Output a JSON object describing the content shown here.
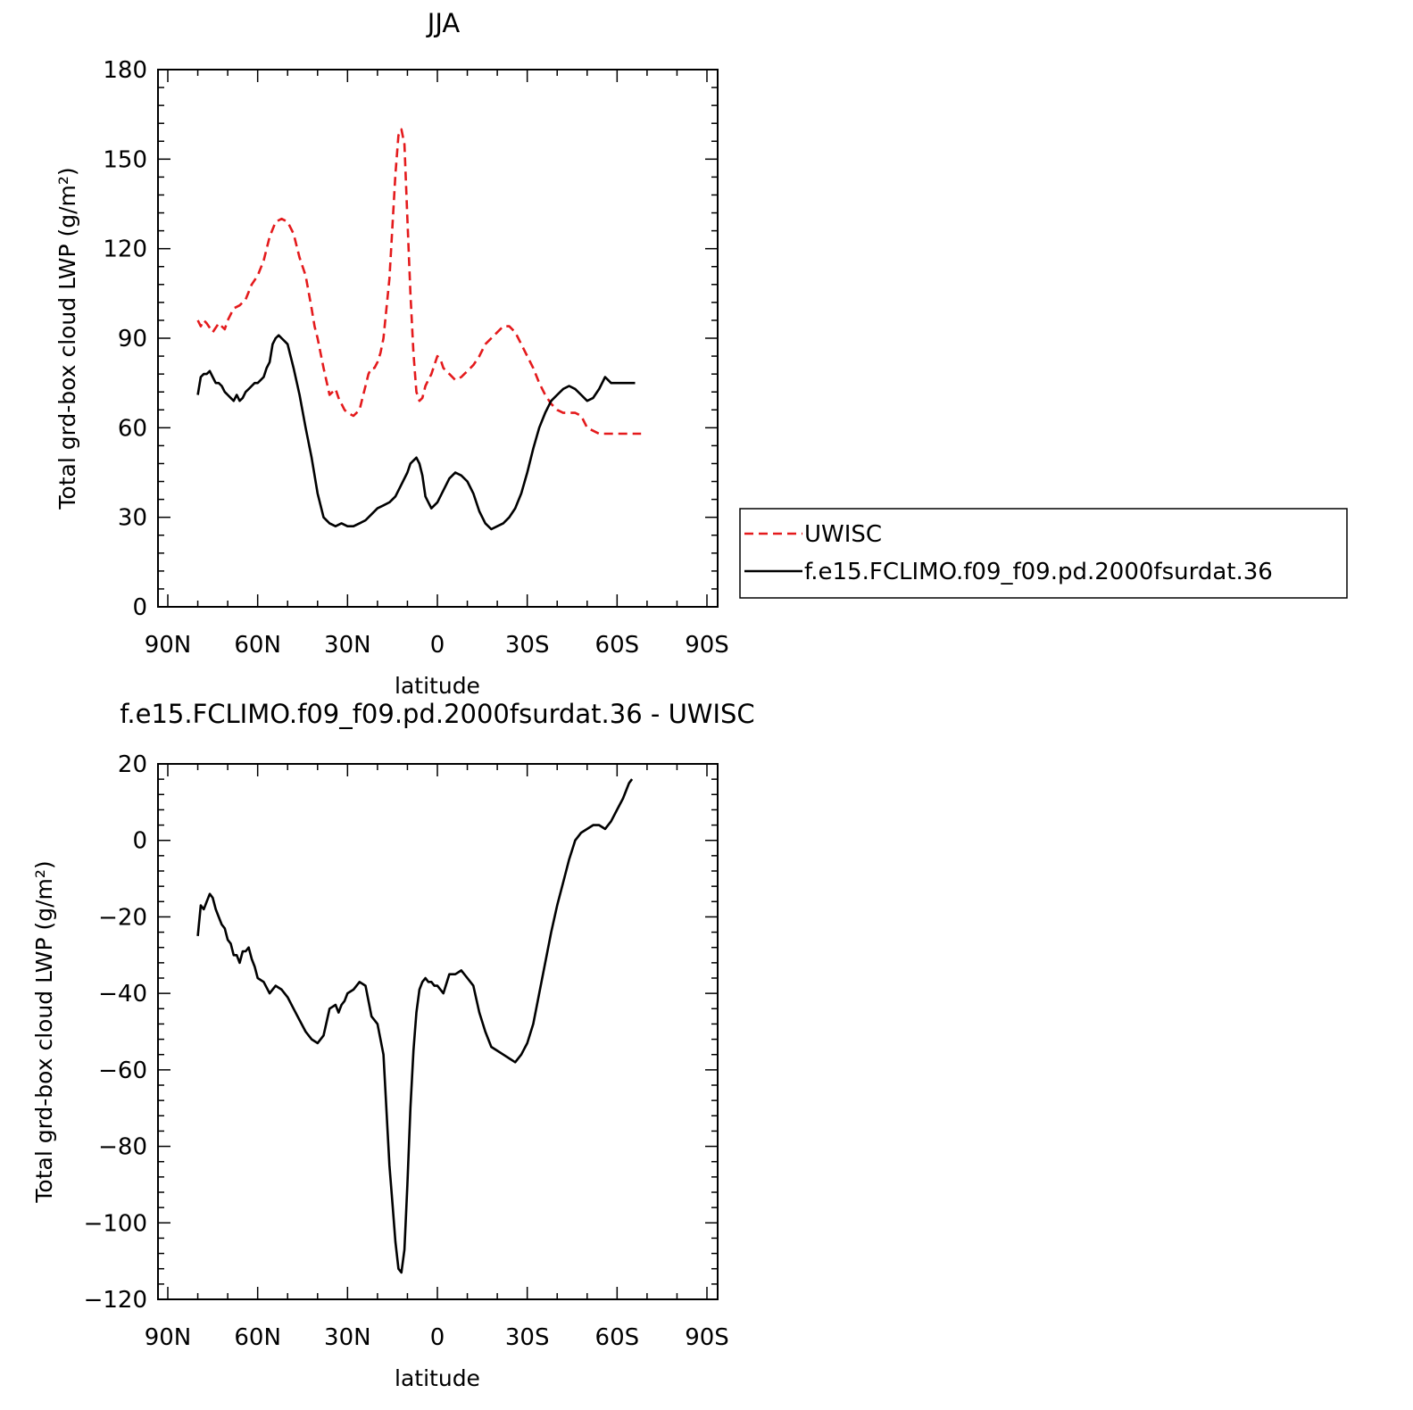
{
  "chart_data": [
    {
      "type": "line",
      "title": "JJA",
      "xlabel": "latitude",
      "ylabel": "Total grd-box cloud LWP (g/m²)",
      "xlim": [
        90,
        -90
      ],
      "ylim": [
        0,
        180
      ],
      "x_ticks": [
        90,
        60,
        30,
        0,
        -30,
        -60,
        -90
      ],
      "x_tick_labels": [
        "90N",
        "60N",
        "30N",
        "0",
        "30S",
        "60S",
        "90S"
      ],
      "y_ticks": [
        0,
        30,
        60,
        90,
        120,
        150,
        180
      ],
      "y_tick_labels": [
        "0",
        "30",
        "60",
        "90",
        "120",
        "150",
        "180"
      ],
      "legend_position": "right, outside plot",
      "series": [
        {
          "name": "UWISC",
          "color": "#e41a1c",
          "style": "dashed",
          "x": [
            80,
            79,
            78,
            77,
            75,
            73,
            71,
            70,
            68,
            66,
            64,
            62,
            60,
            58,
            56,
            54,
            52,
            50,
            48,
            46,
            44,
            42,
            41,
            40,
            38,
            36,
            34,
            33,
            32,
            31,
            30,
            28,
            26,
            25,
            24,
            23,
            22,
            21,
            20,
            19,
            18,
            16,
            14,
            13,
            12,
            11,
            10,
            9,
            8,
            7,
            6,
            5,
            4,
            3,
            2,
            1,
            0,
            -1,
            -2,
            -4,
            -6,
            -8,
            -9,
            -10,
            -12,
            -14,
            -16,
            -18,
            -20,
            -22,
            -24,
            -26,
            -28,
            -30,
            -32,
            -34,
            -36,
            -38,
            -40,
            -42,
            -44,
            -46,
            -48,
            -50,
            -52,
            -54,
            -56,
            -58,
            -60,
            -62,
            -64,
            -65,
            -66,
            -67,
            -68
          ],
          "y": [
            96,
            94,
            96,
            95,
            92,
            95,
            93,
            96,
            100,
            101,
            103,
            108,
            111,
            116,
            124,
            129,
            130,
            129,
            125,
            117,
            111,
            100,
            94,
            90,
            80,
            71,
            73,
            70,
            68,
            66,
            65,
            64,
            66,
            70,
            74,
            78,
            80,
            80,
            82,
            85,
            90,
            110,
            145,
            158,
            160,
            155,
            130,
            105,
            85,
            72,
            69,
            70,
            74,
            76,
            78,
            81,
            84,
            83,
            80,
            78,
            76,
            77,
            78,
            79,
            81,
            84,
            88,
            90,
            92,
            94,
            94,
            92,
            88,
            84,
            80,
            75,
            71,
            68,
            66,
            65,
            65,
            65,
            64,
            60,
            59,
            58,
            58,
            58,
            58,
            58,
            58,
            58,
            58,
            58,
            58
          ]
        },
        {
          "name": "f.e15.FCLIMO.f09_f09.pd.2000fsurdat.36",
          "color": "#000000",
          "style": "solid",
          "x": [
            80,
            79,
            78,
            77,
            76,
            75,
            74,
            73,
            72,
            71,
            70,
            69,
            68,
            67,
            66,
            65,
            64,
            63,
            62,
            61,
            60,
            58,
            57,
            56,
            55,
            54,
            53,
            52,
            51,
            50,
            48,
            46,
            44,
            42,
            40,
            38,
            36,
            34,
            32,
            30,
            28,
            26,
            24,
            22,
            20,
            18,
            16,
            14,
            12,
            10,
            9,
            8,
            7,
            6,
            5,
            4,
            3,
            2,
            1,
            0,
            -2,
            -4,
            -6,
            -8,
            -10,
            -12,
            -14,
            -16,
            -18,
            -20,
            -22,
            -24,
            -26,
            -28,
            -30,
            -32,
            -34,
            -36,
            -38,
            -40,
            -42,
            -44,
            -46,
            -48,
            -50,
            -52,
            -54,
            -56,
            -58,
            -60,
            -62,
            -64,
            -65,
            -66
          ],
          "y": [
            71,
            77,
            78,
            78,
            79,
            77,
            75,
            75,
            74,
            72,
            71,
            70,
            69,
            71,
            69,
            70,
            72,
            73,
            74,
            75,
            75,
            77,
            80,
            82,
            88,
            90,
            91,
            90,
            89,
            88,
            80,
            71,
            60,
            50,
            38,
            30,
            28,
            27,
            28,
            27,
            27,
            28,
            29,
            31,
            33,
            34,
            35,
            37,
            41,
            45,
            48,
            49,
            50,
            48,
            44,
            37,
            35,
            33,
            34,
            35,
            39,
            43,
            45,
            44,
            42,
            38,
            32,
            28,
            26,
            27,
            28,
            30,
            33,
            38,
            45,
            53,
            60,
            65,
            69,
            71,
            73,
            74,
            73,
            71,
            69,
            70,
            73,
            77,
            75,
            75,
            75,
            75,
            75,
            75
          ]
        }
      ]
    },
    {
      "type": "line",
      "title": "f.e15.FCLIMO.f09_f09.pd.2000fsurdat.36 - UWISC",
      "xlabel": "latitude",
      "ylabel": "Total grd-box cloud LWP (g/m²)",
      "xlim": [
        90,
        -90
      ],
      "ylim": [
        -120,
        20
      ],
      "x_ticks": [
        90,
        60,
        30,
        0,
        -30,
        -60,
        -90
      ],
      "x_tick_labels": [
        "90N",
        "60N",
        "30N",
        "0",
        "30S",
        "60S",
        "90S"
      ],
      "y_ticks": [
        -120,
        -100,
        -80,
        -60,
        -40,
        -20,
        0,
        20
      ],
      "y_tick_labels": [
        "−120",
        "−100",
        "−80",
        "−60",
        "−40",
        "−20",
        "0",
        "20"
      ],
      "series": [
        {
          "color": "#000000",
          "style": "solid",
          "x": [
            80,
            79,
            78,
            77,
            76,
            75,
            74,
            73,
            72,
            71,
            70,
            69,
            68,
            67,
            66,
            65,
            64,
            63,
            62,
            61,
            60,
            58,
            56,
            54,
            52,
            50,
            48,
            46,
            44,
            42,
            40,
            38,
            36,
            34,
            33,
            32,
            31,
            30,
            28,
            26,
            24,
            22,
            20,
            18,
            16,
            15,
            14,
            13,
            12,
            11,
            10,
            9,
            8,
            7,
            6,
            5,
            4,
            3,
            2,
            1,
            0,
            -2,
            -4,
            -6,
            -8,
            -10,
            -12,
            -14,
            -16,
            -18,
            -20,
            -22,
            -24,
            -26,
            -28,
            -30,
            -32,
            -34,
            -36,
            -38,
            -40,
            -42,
            -44,
            -46,
            -48,
            -50,
            -52,
            -54,
            -56,
            -58,
            -60,
            -62,
            -64,
            -65
          ],
          "y": [
            -25,
            -17,
            -18,
            -16,
            -14,
            -15,
            -18,
            -20,
            -22,
            -23,
            -26,
            -27,
            -30,
            -30,
            -32,
            -29,
            -29,
            -28,
            -31,
            -33,
            -36,
            -37,
            -40,
            -38,
            -39,
            -41,
            -44,
            -47,
            -50,
            -52,
            -53,
            -51,
            -44,
            -43,
            -45,
            -43,
            -42,
            -40,
            -39,
            -37,
            -38,
            -46,
            -48,
            -56,
            -85,
            -95,
            -105,
            -112,
            -113,
            -107,
            -90,
            -70,
            -55,
            -45,
            -39,
            -37,
            -36,
            -37,
            -37,
            -38,
            -38,
            -40,
            -35,
            -35,
            -34,
            -36,
            -38,
            -45,
            -50,
            -54,
            -55,
            -56,
            -57,
            -58,
            -56,
            -53,
            -48,
            -40,
            -32,
            -24,
            -17,
            -11,
            -5,
            0,
            2,
            3,
            4,
            4,
            3,
            5,
            8,
            11,
            15,
            16
          ]
        }
      ]
    }
  ],
  "legend_entries": [
    {
      "label": "UWISC",
      "color": "#e41a1c",
      "style": "dashed"
    },
    {
      "label": "f.e15.FCLIMO.f09_f09.pd.2000fsurdat.36",
      "color": "#000000",
      "style": "solid"
    }
  ]
}
